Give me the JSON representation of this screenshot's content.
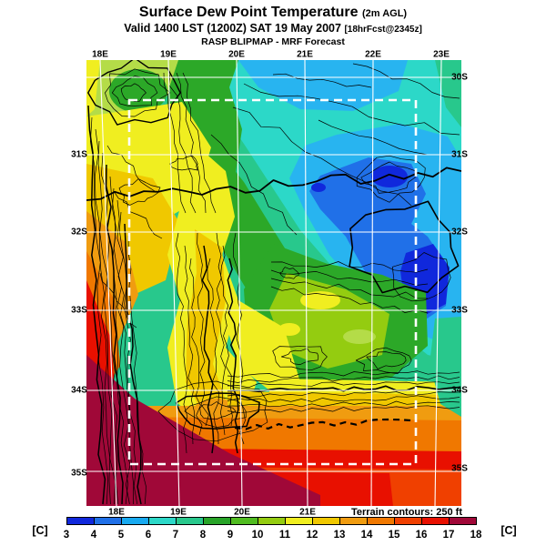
{
  "title": {
    "line1": "Surface Dew Point Temperature",
    "line1_note": "(2m AGL)",
    "line2": "Valid 1400 LST (1200Z) SAT 19 May 2007",
    "line2_note": "[18hrFcst@2345z]",
    "line3": "RASP BLIPMAP - MRF Forecast"
  },
  "map": {
    "lon_top": [
      "18E",
      "19E",
      "20E",
      "21E",
      "22E",
      "23E"
    ],
    "lon_bottom": [
      "18E",
      "19E",
      "20E",
      "21E"
    ],
    "lat_left": [
      "31S",
      "32S",
      "33S",
      "34S",
      "35S"
    ],
    "lat_right": [
      "30S",
      "31S",
      "32S",
      "33S",
      "34S",
      "35S"
    ],
    "note": "Terrain contours: 250 ft"
  },
  "colorbar": {
    "unit": "[C]",
    "ticks": [
      "3",
      "4",
      "5",
      "6",
      "7",
      "8",
      "9",
      "10",
      "11",
      "12",
      "13",
      "14",
      "15",
      "16",
      "17",
      "18"
    ],
    "colors": [
      "#1028dc",
      "#2070e8",
      "#18aaf0",
      "#2cd8c8",
      "#28c88c",
      "#28a428",
      "#50bc20",
      "#94cc10",
      "#f0ee20",
      "#f0c800",
      "#f09c10",
      "#f07800",
      "#f04000",
      "#e81000",
      "#a00838"
    ]
  },
  "palette": {
    "blue_dark": "#1028dc",
    "blue": "#2070e8",
    "sky": "#28b4f0",
    "cyan": "#2cd8c8",
    "teal": "#28c88c",
    "green": "#2ca828",
    "green_bright": "#50bc20",
    "lime": "#94cc10",
    "lime_pale": "#b4dc48",
    "yellow": "#f0ee20",
    "gold": "#f0c800",
    "amber": "#f09c10",
    "orange": "#f07800",
    "orange_red": "#f04000",
    "red": "#e81000",
    "maroon": "#a00838"
  },
  "grid_color": "#ffffff",
  "contour_color": "#000000",
  "domain_box_color": "#ffffff"
}
